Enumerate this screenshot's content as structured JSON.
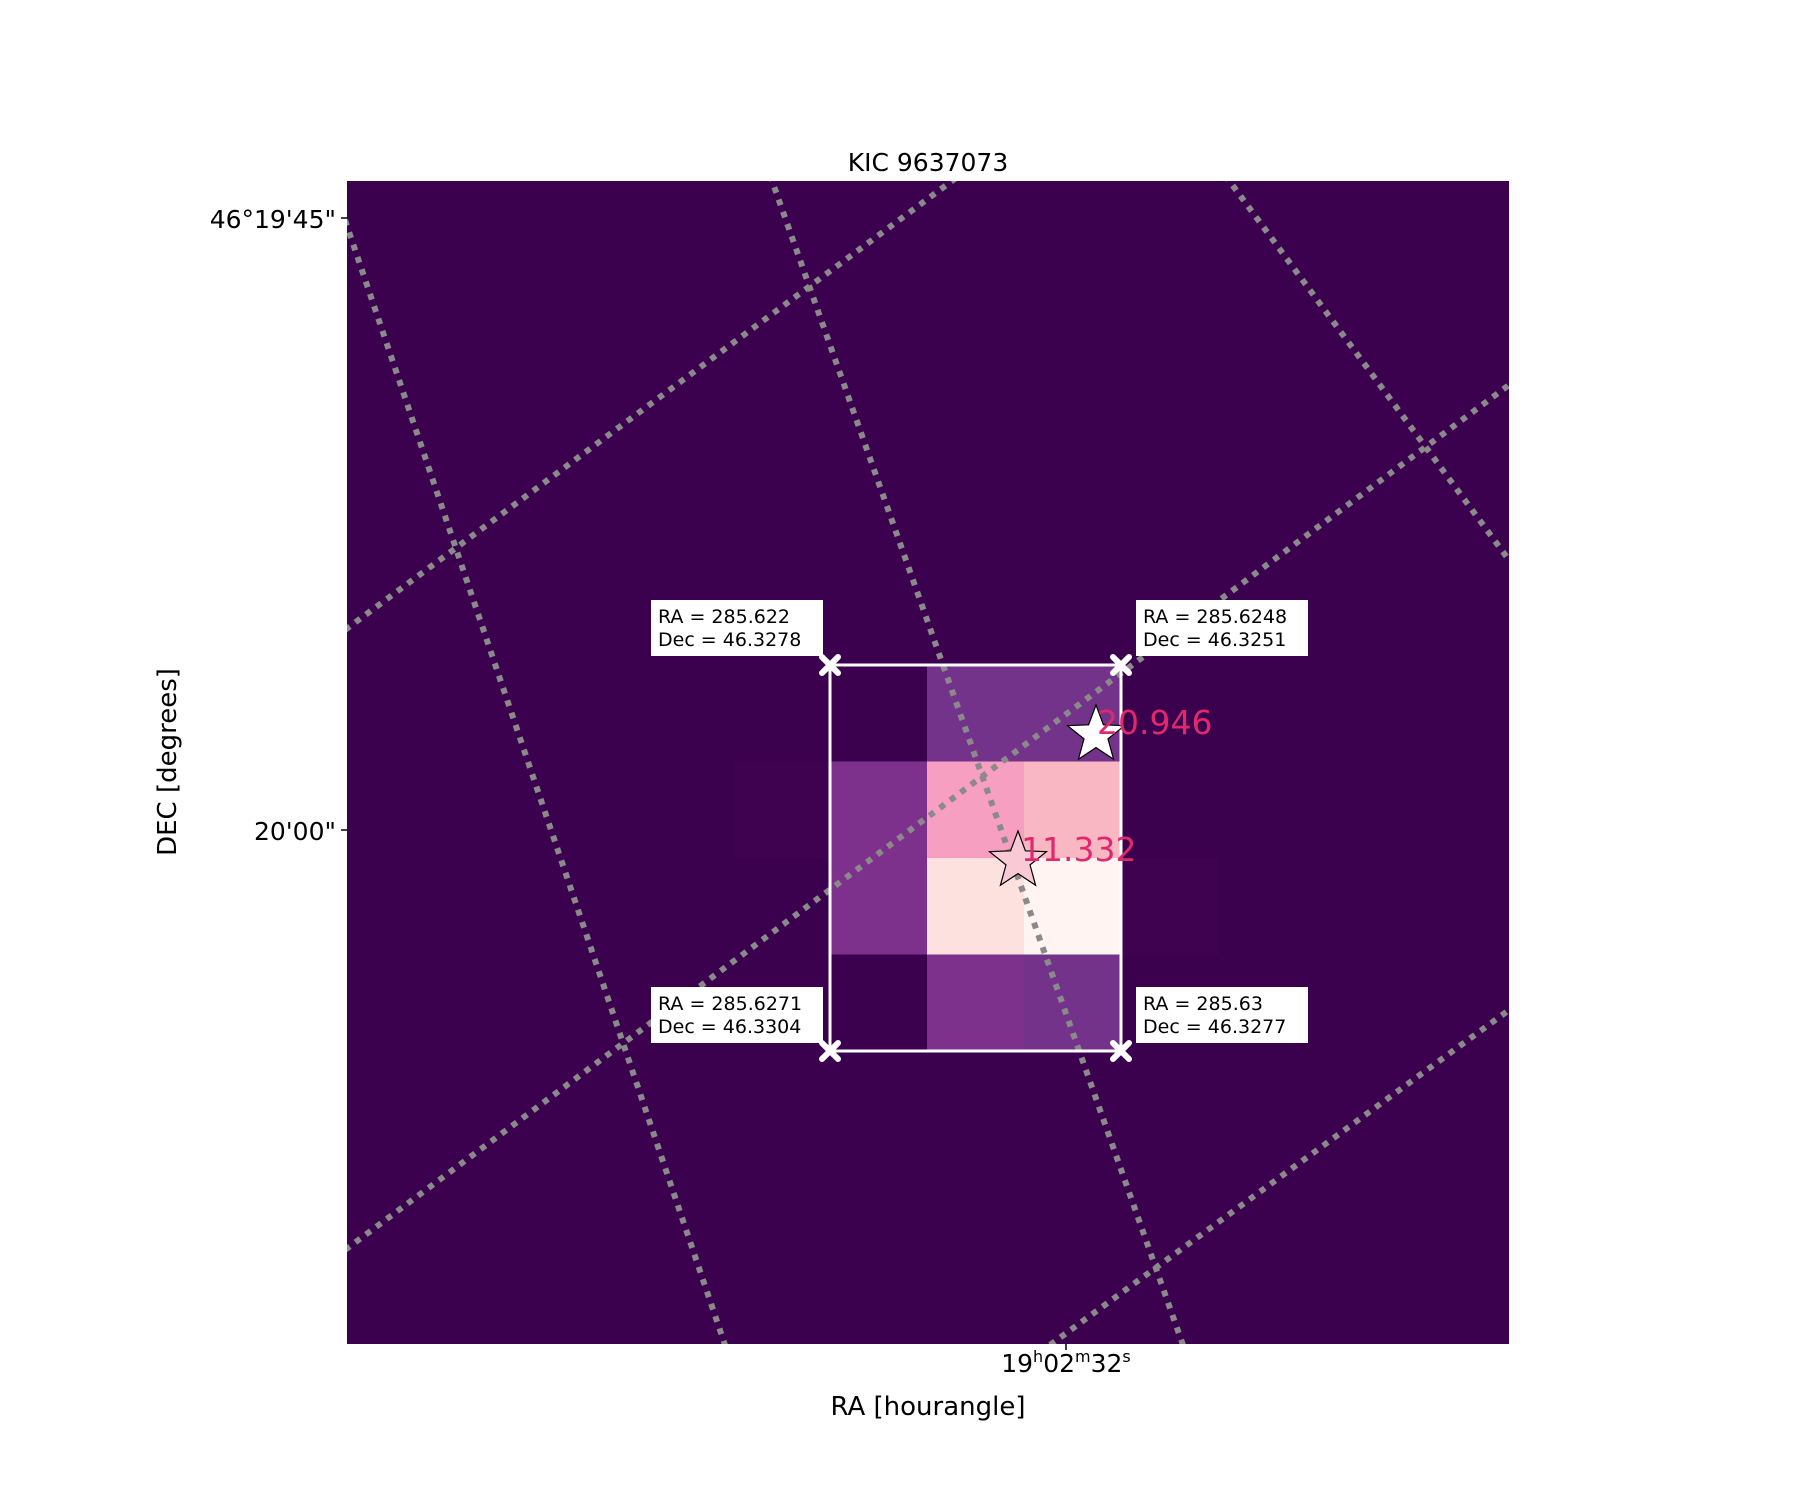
{
  "chart_data": {
    "type": "heatmap",
    "title": "KIC 9637073",
    "xlabel": "RA [hourangle]",
    "ylabel": "DEC [degrees]",
    "xticks": {
      "label": "19h02m32s",
      "h": "19",
      "hsup": "h",
      "m": "02",
      "msup": "m",
      "s": "32",
      "ssup": "s"
    },
    "yticks": [
      "46°19'45\"",
      "20'00\""
    ],
    "grid": true,
    "grid_style": "dotted",
    "colormap": "RdPu_r",
    "background_color": "#3b014f",
    "pixel_grid": {
      "rows": 4,
      "cols": 3,
      "colors": [
        [
          "#3b014f",
          "#74338a",
          "#74338a"
        ],
        [
          "#7e318c",
          "#f79fc0",
          "#f9b7c4"
        ],
        [
          "#7e318c",
          "#fde1de",
          "#fff4f2"
        ],
        [
          "#3b014f",
          "#7e318c",
          "#74338a"
        ]
      ]
    },
    "aperture_corners": [
      {
        "position": "top-left",
        "ra_label": "RA = 285.622",
        "dec_label": "Dec = 46.3278"
      },
      {
        "position": "top-right",
        "ra_label": "RA = 285.6248",
        "dec_label": "Dec = 46.3251"
      },
      {
        "position": "bottom-left",
        "ra_label": "RA = 285.6271",
        "dec_label": "Dec = 46.3304"
      },
      {
        "position": "bottom-right",
        "ra_label": "RA = 285.63",
        "dec_label": "Dec = 46.3277"
      }
    ],
    "stars": [
      {
        "magnitude": "20.946",
        "fill": "#ffffff"
      },
      {
        "magnitude": "11.332",
        "fill": "#f9c9d6"
      }
    ],
    "star_label_color": "#e0286d"
  }
}
